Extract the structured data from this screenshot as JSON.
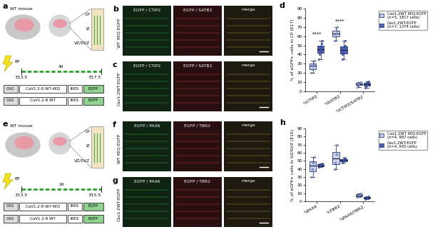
{
  "panels": [
    {
      "label": "a",
      "mouse": "WT mouse",
      "ep": "EP",
      "layers": [
        "CP",
        "IZ",
        "VZ/SVZ"
      ],
      "start": "E13.5",
      "end": "E17.5",
      "duration": "4d",
      "constructs": [
        [
          "CAG",
          "CaV1.2-8 WT-4EQ",
          "IRES",
          "EGFP"
        ],
        [
          "CAG",
          "CaV1.2-8 WT",
          "IRES",
          "EGFP"
        ]
      ]
    },
    {
      "label": "e",
      "mouse": "WT mouse",
      "ep": "EP",
      "layers": [
        "CP",
        "IZ",
        "VZ/SVZ"
      ],
      "start": "E13.5",
      "end": "E15.5",
      "duration": "2d",
      "constructs": [
        [
          "CAG",
          "CaV1.2-8 WT-4EQ",
          "IRES",
          "EGFP"
        ],
        [
          "CAG",
          "CaV1.2-8 WT",
          "IRES",
          "EGFP"
        ]
      ]
    }
  ],
  "images": [
    {
      "label": "b",
      "row_label": "WT 4EQ-EGFP",
      "columns": [
        "EGFP / CTIP2",
        "EGFP / SATB2",
        "merge"
      ]
    },
    {
      "label": "c",
      "row_label": "Cav1.2WT-EGFP",
      "columns": [
        "EGFP / CTIP2",
        "EGFP / SATB2",
        "merge"
      ]
    },
    {
      "label": "f",
      "row_label": "WT 4EQ-EGFP",
      "columns": [
        "EGFP / PAX6",
        "EGFP / TBR2",
        "merge"
      ]
    },
    {
      "label": "g",
      "row_label": "Cav1.2WT-EGFP",
      "columns": [
        "EGFP / PAX6",
        "EGFP / TBR2",
        "merge"
      ]
    }
  ],
  "chart_data": [
    {
      "type": "box",
      "panel_label": "d",
      "ylabel": "% of eGFP+ cells in CP (E17)",
      "categories": [
        "%CTIP2",
        "%SATB2",
        "%CTIP2/SATB2"
      ],
      "ylim": [
        0,
        90
      ],
      "yticks": [
        0,
        10,
        20,
        30,
        40,
        50,
        60,
        70,
        80,
        90
      ],
      "legend": "upper left",
      "series": [
        {
          "name": "Cav1.2WT 4EQ-EGFP\n(n=5, 1817 cells)",
          "color": "#c5d0ee",
          "values": [
            [
              20,
              24,
              28,
              30,
              33
            ],
            [
              55,
              60,
              63,
              66,
              70
            ],
            [
              5,
              7,
              8,
              9,
              10
            ]
          ]
        },
        {
          "name": "Cav1.2WT-EGFP\n(n=7, 1374 cells)",
          "color": "#4a63b8",
          "values": [
            [
              35,
              40,
              44,
              46,
              48,
              52,
              55
            ],
            [
              35,
              40,
              42,
              45,
              48,
              50,
              55
            ],
            [
              4,
              6,
              7,
              8,
              9,
              10,
              11
            ]
          ]
        }
      ],
      "annotations": [
        {
          "text": "****",
          "category": "%CTIP2",
          "y": 60
        },
        {
          "text": "****",
          "category": "%SATB2",
          "y": 74
        }
      ]
    },
    {
      "type": "box",
      "panel_label": "h",
      "ylabel": "% of eGFP+ cells in VZ/SVZ (E15)",
      "categories": [
        "%PAX6",
        "%TBR2",
        "%PAX6/TBR2"
      ],
      "ylim": [
        0,
        90
      ],
      "yticks": [
        0,
        10,
        20,
        30,
        40,
        50,
        60,
        70,
        80,
        90
      ],
      "legend": "upper left",
      "series": [
        {
          "name": "Cav1.2WT 4EQ-EGFP\n(n=4, 987 cells)",
          "color": "#c5d0ee",
          "values": [
            [
              30,
              40,
              48,
              55
            ],
            [
              40,
              48,
              58,
              70
            ],
            [
              5,
              7,
              8,
              10
            ]
          ]
        },
        {
          "name": "Cav1.2WT-EGFP\n(n=4, 935 cells)",
          "color": "#4a63b8",
          "values": [
            [
              42,
              44,
              45,
              47
            ],
            [
              48,
              50,
              52,
              54
            ],
            [
              3,
              4,
              5,
              6
            ]
          ]
        }
      ],
      "annotations": []
    }
  ]
}
